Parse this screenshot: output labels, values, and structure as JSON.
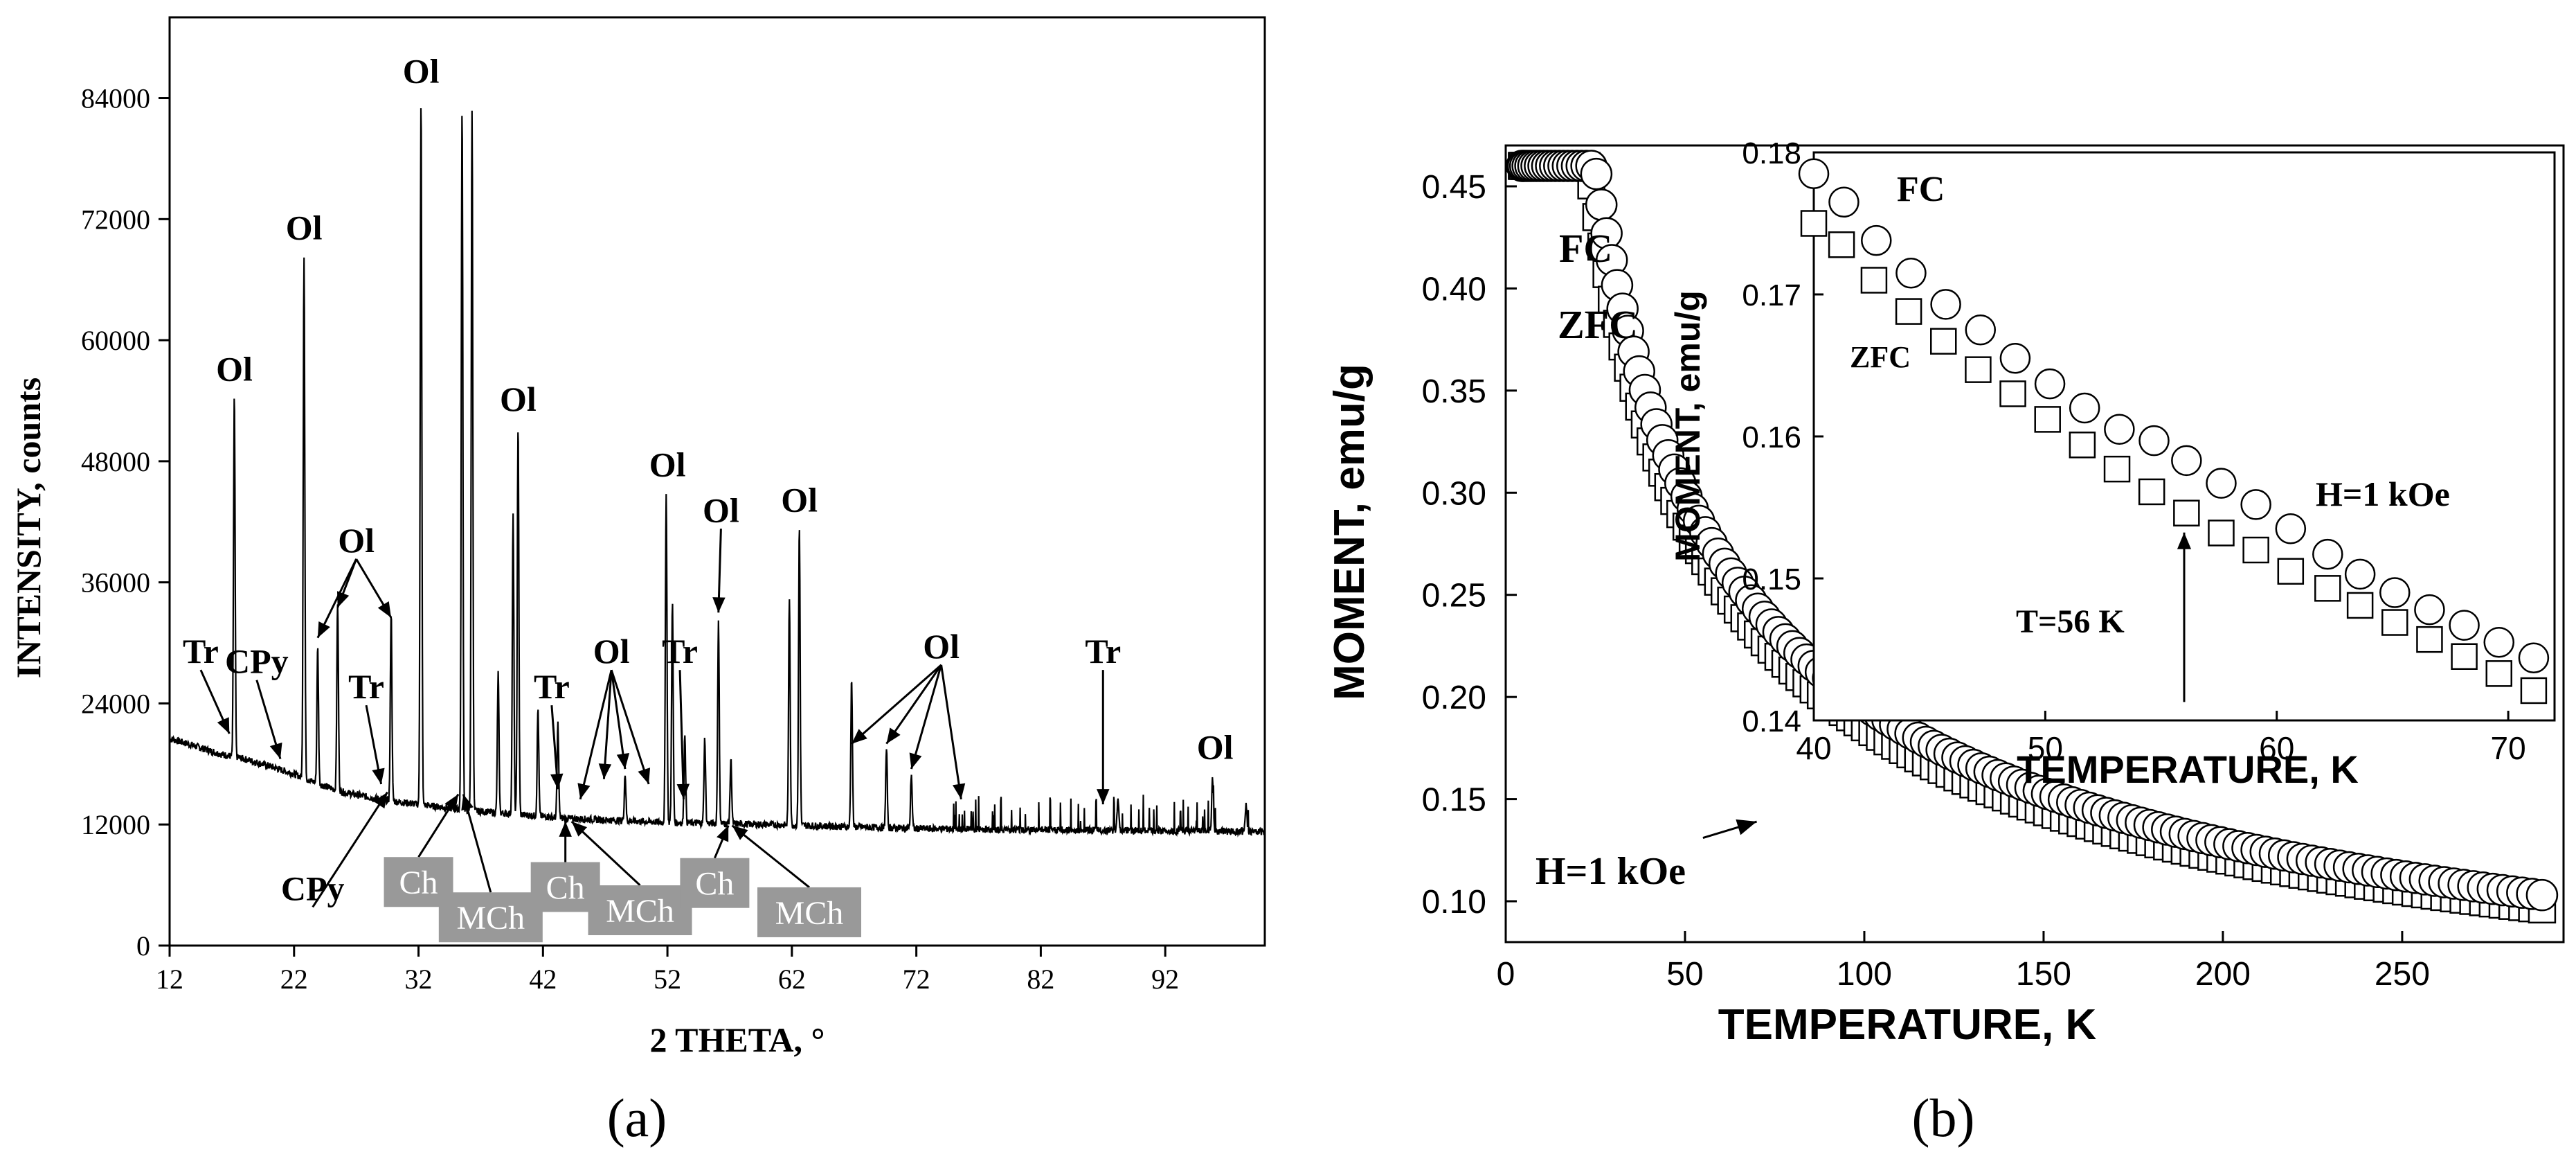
{
  "colors": {
    "ink": "#000000",
    "box_fill": "#999999",
    "box_text": "#ffffff",
    "background": "#ffffff"
  },
  "panel_labels": {
    "a": "(a)",
    "b": "(b)"
  },
  "chart_data": [
    {
      "id": "a",
      "type": "line",
      "title": "",
      "xlabel": "2 THETA, °",
      "ylabel": "INTENSITY,  counts",
      "xlim": [
        12,
        100
      ],
      "ylim": [
        0,
        92000
      ],
      "x_ticks": [
        12,
        22,
        32,
        42,
        52,
        62,
        72,
        82,
        92
      ],
      "y_ticks": [
        0,
        12000,
        24000,
        36000,
        48000,
        60000,
        72000,
        84000
      ],
      "baseline": [
        [
          12,
          20500
        ],
        [
          14,
          19800
        ],
        [
          16,
          19000
        ],
        [
          18,
          18500
        ],
        [
          20,
          17800
        ],
        [
          22,
          17000
        ],
        [
          24,
          16000
        ],
        [
          26,
          15200
        ],
        [
          28,
          14700
        ],
        [
          30,
          14300
        ],
        [
          32,
          14000
        ],
        [
          34,
          13700
        ],
        [
          36,
          13400
        ],
        [
          38,
          13200
        ],
        [
          40,
          13000
        ],
        [
          42,
          12800
        ],
        [
          44,
          12600
        ],
        [
          46,
          12500
        ],
        [
          48,
          12400
        ],
        [
          50,
          12300
        ],
        [
          52,
          12200
        ],
        [
          56,
          12100
        ],
        [
          60,
          12000
        ],
        [
          66,
          11800
        ],
        [
          72,
          11600
        ],
        [
          80,
          11500
        ],
        [
          90,
          11400
        ],
        [
          100,
          11300
        ]
      ],
      "peaks": [
        {
          "x": 17.2,
          "y": 54500
        },
        {
          "x": 22.8,
          "y": 68500
        },
        {
          "x": 23.9,
          "y": 29500
        },
        {
          "x": 25.5,
          "y": 34000
        },
        {
          "x": 29.8,
          "y": 33000
        },
        {
          "x": 32.2,
          "y": 84000
        },
        {
          "x": 35.5,
          "y": 83000
        },
        {
          "x": 36.3,
          "y": 83000
        },
        {
          "x": 38.4,
          "y": 27000
        },
        {
          "x": 39.6,
          "y": 42500
        },
        {
          "x": 40.0,
          "y": 51500
        },
        {
          "x": 41.6,
          "y": 23500
        },
        {
          "x": 43.2,
          "y": 22000
        },
        {
          "x": 48.6,
          "y": 17000
        },
        {
          "x": 51.9,
          "y": 45000
        },
        {
          "x": 52.4,
          "y": 34000
        },
        {
          "x": 53.4,
          "y": 21000
        },
        {
          "x": 55.0,
          "y": 20500
        },
        {
          "x": 56.1,
          "y": 32000
        },
        {
          "x": 57.1,
          "y": 18500
        },
        {
          "x": 61.8,
          "y": 34500
        },
        {
          "x": 62.6,
          "y": 41500
        },
        {
          "x": 66.8,
          "y": 26500
        },
        {
          "x": 69.6,
          "y": 19500
        },
        {
          "x": 71.6,
          "y": 17000
        },
        {
          "x": 88.2,
          "y": 14800
        },
        {
          "x": 95.8,
          "y": 16500
        },
        {
          "x": 98.5,
          "y": 14000
        }
      ],
      "annotations": [
        {
          "label": "Ol",
          "at": [
            17.2,
            56000
          ],
          "arrows": []
        },
        {
          "label": "Ol",
          "at": [
            22.8,
            70000
          ],
          "arrows": []
        },
        {
          "label": "Ol",
          "at": [
            32.2,
            85500
          ],
          "arrows": []
        },
        {
          "label": "Ol",
          "at": [
            40.0,
            53000
          ],
          "arrows": []
        },
        {
          "label": "Ol",
          "at": [
            52.0,
            46500
          ],
          "arrows": []
        },
        {
          "label": "Ol",
          "at": [
            62.6,
            43000
          ],
          "arrows": []
        },
        {
          "label": "Ol",
          "at": [
            96.0,
            18500
          ],
          "arrows": []
        },
        {
          "label": "Ol",
          "at": [
            27.0,
            39000
          ],
          "arrows": [
            [
              23.9,
              30500
            ],
            [
              25.5,
              33500
            ],
            [
              29.8,
              32500
            ]
          ]
        },
        {
          "label": "Ol",
          "at": [
            47.5,
            28000
          ],
          "arrows": [
            [
              45.0,
              14500
            ],
            [
              46.9,
              16500
            ],
            [
              48.6,
              17500
            ],
            [
              50.5,
              16000
            ]
          ]
        },
        {
          "label": "Ol",
          "at": [
            56.3,
            42000
          ],
          "arrows": [
            [
              56.1,
              33000
            ]
          ]
        },
        {
          "label": "Ol",
          "at": [
            74.0,
            28500
          ],
          "arrows": [
            [
              66.8,
              20000
            ],
            [
              69.6,
              20000
            ],
            [
              71.6,
              17500
            ],
            [
              75.6,
              14500
            ]
          ]
        },
        {
          "label": "Tr",
          "at": [
            14.5,
            28000
          ],
          "arrows": [
            [
              16.8,
              21000
            ]
          ]
        },
        {
          "label": "Tr",
          "at": [
            27.8,
            24500
          ],
          "arrows": [
            [
              29.0,
              16000
            ]
          ]
        },
        {
          "label": "Tr",
          "at": [
            42.7,
            24500
          ],
          "arrows": [
            [
              43.2,
              15500
            ]
          ]
        },
        {
          "label": "Tr",
          "at": [
            53.0,
            28000
          ],
          "arrows": [
            [
              53.3,
              14500
            ]
          ]
        },
        {
          "label": "Tr",
          "at": [
            87.0,
            28000
          ],
          "arrows": [
            [
              87.0,
              14000
            ]
          ]
        },
        {
          "label": "CPy",
          "at": [
            19.0,
            27000
          ],
          "arrows": [
            [
              20.9,
              18500
            ]
          ]
        },
        {
          "label": "CPy",
          "at": [
            23.5,
            4500
          ],
          "arrows": [
            [
              29.5,
              15200
            ]
          ]
        }
      ],
      "boxed_labels": [
        {
          "label": "Ch",
          "at": [
            32.0,
            6300
          ],
          "arrows": [
            [
              35.2,
              15000
            ]
          ]
        },
        {
          "label": "MCh",
          "at": [
            37.8,
            2800
          ],
          "arrows": [
            [
              35.6,
              15000
            ]
          ]
        },
        {
          "label": "Ch",
          "at": [
            43.8,
            5800
          ],
          "arrows": [
            [
              43.8,
              12300
            ]
          ]
        },
        {
          "label": "MCh",
          "at": [
            49.8,
            3500
          ],
          "arrows": [
            [
              44.3,
              12300
            ]
          ]
        },
        {
          "label": "Ch",
          "at": [
            55.8,
            6200
          ],
          "arrows": [
            [
              56.9,
              11900
            ]
          ]
        },
        {
          "label": "MCh",
          "at": [
            63.4,
            3300
          ],
          "arrows": [
            [
              57.2,
              11900
            ]
          ]
        }
      ]
    },
    {
      "id": "b",
      "type": "scatter",
      "title": "",
      "xlabel": "TEMPERATURE, K",
      "ylabel": "MOMENT, emu/g",
      "xlim": [
        0,
        295
      ],
      "ylim": [
        0.08,
        0.47
      ],
      "x_ticks": [
        0,
        50,
        100,
        150,
        200,
        250
      ],
      "y_ticks": [
        0.1,
        0.15,
        0.2,
        0.25,
        0.3,
        0.35,
        0.4,
        0.45
      ],
      "y_tick_labels": [
        "0.10",
        "0.15",
        "0.20",
        "0.25",
        "0.30",
        "0.35",
        "0.40",
        "0.45"
      ],
      "series": [
        {
          "name": "FC",
          "marker": "circle",
          "model": {
            "a": 0.07,
            "b": 2.0,
            "c": 0.032,
            "c_ref": 0.1,
            "t_ref": 289
          },
          "t_range": [
            4.5,
            289
          ],
          "points": 140
        },
        {
          "name": "ZFC",
          "marker": "square",
          "model": {
            "a": 0.07,
            "b": 2.0,
            "c": 0.03,
            "c_ref": 0.096,
            "t_ref": 289
          },
          "t_range": [
            4.5,
            289
          ],
          "points": 140
        }
      ],
      "legend": {
        "fc": "FC",
        "zfc": "ZFC"
      },
      "field_label": "H=1 kOe",
      "inset": {
        "xlabel": "TEMPERATURE, K",
        "ylabel": "MOMENT, emu/g",
        "xlim": [
          40,
          72
        ],
        "ylim": [
          0.14,
          0.18
        ],
        "x_ticks": [
          40,
          50,
          60,
          70
        ],
        "y_ticks": [
          0.14,
          0.15,
          0.16,
          0.17,
          0.18
        ],
        "y_tick_labels": [
          "0.14",
          "0.15",
          "0.16",
          "0.17",
          "0.18"
        ],
        "series": [
          {
            "name": "FC",
            "marker": "circle",
            "x": [
              40.0,
              41.3,
              42.7,
              44.2,
              45.7,
              47.2,
              48.7,
              50.2,
              51.7,
              53.2,
              54.7,
              56.1,
              57.6,
              59.1,
              60.6,
              62.2,
              63.6,
              65.1,
              66.6,
              68.1,
              69.6,
              71.1
            ],
            "y": [
              0.1785,
              0.1765,
              0.1738,
              0.1715,
              0.1693,
              0.1675,
              0.1655,
              0.1637,
              0.162,
              0.1605,
              0.1597,
              0.1583,
              0.1567,
              0.1552,
              0.1535,
              0.1517,
              0.1503,
              0.149,
              0.1478,
              0.1467,
              0.1455,
              0.1444
            ]
          },
          {
            "name": "ZFC",
            "marker": "square",
            "x": [
              40.0,
              41.2,
              42.6,
              44.1,
              45.6,
              47.1,
              48.6,
              50.1,
              51.6,
              53.1,
              54.6,
              56.1,
              57.6,
              59.1,
              60.6,
              62.2,
              63.6,
              65.1,
              66.6,
              68.1,
              69.6,
              71.1
            ],
            "y": [
              0.175,
              0.1735,
              0.171,
              0.1688,
              0.1667,
              0.1647,
              0.163,
              0.1612,
              0.1594,
              0.1577,
              0.1561,
              0.1546,
              0.1532,
              0.152,
              0.1505,
              0.1493,
              0.1481,
              0.1469,
              0.1457,
              0.1445,
              0.1433,
              0.1421
            ]
          }
        ],
        "legend": {
          "fc": "FC",
          "zfc": "ZFC"
        },
        "field_label": "H=1 kOe",
        "annotation": {
          "label": "T=56 K",
          "arrow_to": [
            56,
            0.1545
          ],
          "arrow_from": [
            56,
            0.1413
          ]
        }
      },
      "pointer_arrow": {
        "from": [
          55,
          0.131
        ],
        "to": [
          70,
          0.139
        ]
      }
    }
  ]
}
